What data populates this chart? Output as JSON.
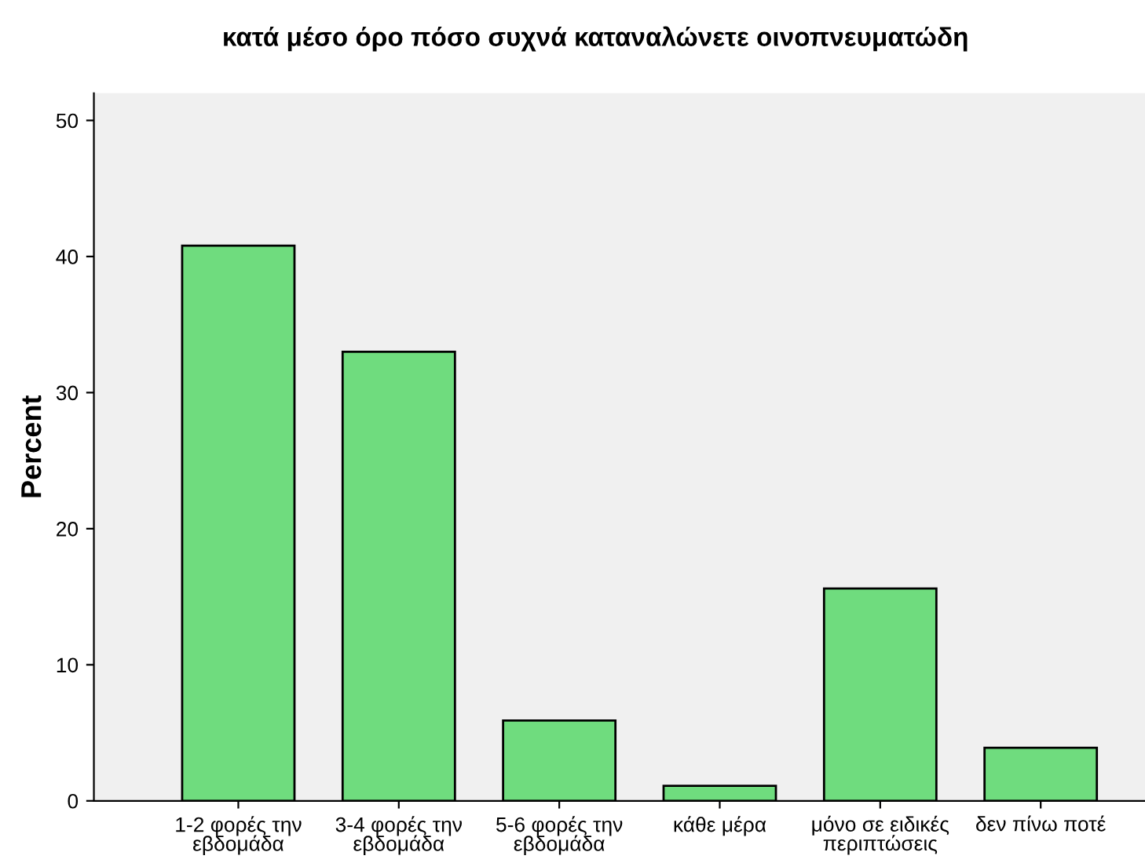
{
  "chart_data": {
    "type": "bar",
    "title": "κατά μέσο όρο πόσο συχνά καταναλώνετε οινοπνευματώδη",
    "ylabel": "Percent",
    "categories": [
      "1-2 φορές την\nεβδομάδα",
      "3-4 φορές την\nεβδομάδα",
      "5-6 φορές την\nεβδομάδα",
      "κάθε μέρα",
      "μόνο σε ειδικές\nπεριπτώσεις",
      "δεν πίνω ποτέ"
    ],
    "values": [
      40.8,
      33.0,
      5.9,
      1.1,
      15.6,
      3.9
    ],
    "color": "#6fdc7e",
    "ylim": [
      0,
      52
    ],
    "yticks": [
      0,
      10,
      20,
      30,
      40,
      50
    ],
    "grid": false
  }
}
